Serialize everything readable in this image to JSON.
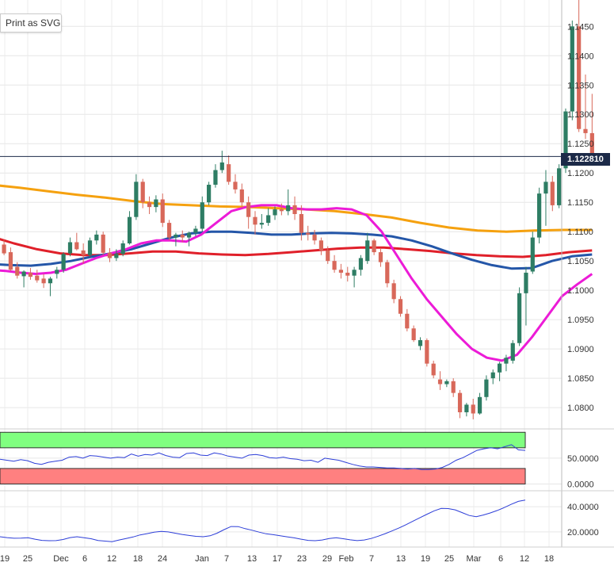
{
  "toolbar": {
    "print_label": "Print as SVG"
  },
  "current_price_label": "1.122810",
  "colors": {
    "bull": "#2e7d64",
    "bear": "#d8685a",
    "sma200": "#f5a10f",
    "sma100": "#e0202a",
    "sma50": "#2456a8",
    "sma20": "#ec1bd7",
    "rsi_overbought": "#80ff80",
    "rsi_oversold": "#ff8080",
    "osc_line": "#2d3ed8",
    "price_line": "#1c2a48"
  },
  "chart_data": [
    {
      "type": "candlestick",
      "instrument_view": "daily",
      "x_tick_labels": [
        "19",
        "25",
        "Dec",
        "6",
        "12",
        "18",
        "24",
        "Jan",
        "7",
        "13",
        "17",
        "23",
        "29",
        "Feb",
        "7",
        "13",
        "19",
        "25",
        "Mar",
        "6",
        "12",
        "18"
      ],
      "y_ticks": [
        "1.0800",
        "1.0850",
        "1.0900",
        "1.0950",
        "1.1000",
        "1.1050",
        "1.1100",
        "1.1150",
        "1.1200",
        "1.1250",
        "1.1300",
        "1.1350",
        "1.1400",
        "1.1450"
      ],
      "ylim": [
        1.0765,
        1.1495
      ],
      "current_price": 1.12281,
      "candles": [
        [
          1.1088,
          1.1093,
          1.1081,
          1.1085
        ],
        [
          1.1086,
          1.109,
          1.1073,
          1.1076
        ],
        [
          1.1078,
          1.1086,
          1.106,
          1.1063
        ],
        [
          1.1065,
          1.1073,
          1.1033,
          1.1035
        ],
        [
          1.104,
          1.1048,
          1.102,
          1.1025
        ],
        [
          1.1024,
          1.1034,
          1.1005,
          1.1032
        ],
        [
          1.103,
          1.1038,
          1.1018,
          1.1023
        ],
        [
          1.1025,
          1.1035,
          1.1013,
          1.1017
        ],
        [
          1.102,
          1.1028,
          1.1004,
          1.1012
        ],
        [
          1.1012,
          1.1023,
          1.099,
          1.102
        ],
        [
          1.1028,
          1.104,
          1.102,
          1.1035
        ],
        [
          1.1035,
          1.1065,
          1.103,
          1.1062
        ],
        [
          1.1063,
          1.109,
          1.1058,
          1.1082
        ],
        [
          1.1082,
          1.1098,
          1.1068,
          1.107
        ],
        [
          1.1068,
          1.108,
          1.1045,
          1.106
        ],
        [
          1.106,
          1.109,
          1.1055,
          1.1085
        ],
        [
          1.1085,
          1.1102,
          1.1078,
          1.1095
        ],
        [
          1.1095,
          1.11,
          1.106,
          1.1064
        ],
        [
          1.1064,
          1.1072,
          1.1048,
          1.1055
        ],
        [
          1.1055,
          1.107,
          1.105,
          1.1062
        ],
        [
          1.1062,
          1.1085,
          1.1058,
          1.108
        ],
        [
          1.108,
          1.1135,
          1.1078,
          1.1125
        ],
        [
          1.1125,
          1.1198,
          1.112,
          1.1185
        ],
        [
          1.1185,
          1.119,
          1.114,
          1.115
        ],
        [
          1.115,
          1.116,
          1.113,
          1.1142
        ],
        [
          1.1142,
          1.1162,
          1.1133,
          1.1155
        ],
        [
          1.1155,
          1.1165,
          1.1108,
          1.1115
        ],
        [
          1.1115,
          1.112,
          1.1085,
          1.109
        ],
        [
          1.109,
          1.1098,
          1.1075,
          1.1095
        ],
        [
          1.1095,
          1.1102,
          1.1082,
          1.109
        ],
        [
          1.109,
          1.11,
          1.1075,
          1.1098
        ],
        [
          1.1098,
          1.111,
          1.1092,
          1.1105
        ],
        [
          1.1105,
          1.116,
          1.11,
          1.115
        ],
        [
          1.115,
          1.1185,
          1.1145,
          1.118
        ],
        [
          1.118,
          1.1215,
          1.1175,
          1.1205
        ],
        [
          1.1205,
          1.1238,
          1.12,
          1.1218
        ],
        [
          1.1215,
          1.123,
          1.118,
          1.1185
        ],
        [
          1.1185,
          1.1198,
          1.1165,
          1.1172
        ],
        [
          1.1172,
          1.1182,
          1.114,
          1.115
        ],
        [
          1.115,
          1.116,
          1.1105,
          1.1125
        ],
        [
          1.1125,
          1.1135,
          1.1095,
          1.1112
        ],
        [
          1.1112,
          1.113,
          1.1105,
          1.1115
        ],
        [
          1.1115,
          1.114,
          1.111,
          1.1128
        ],
        [
          1.1128,
          1.1143,
          1.112,
          1.1138
        ],
        [
          1.1138,
          1.1148,
          1.1128,
          1.1135
        ],
        [
          1.1135,
          1.1172,
          1.1128,
          1.1145
        ],
        [
          1.1145,
          1.116,
          1.112,
          1.113
        ],
        [
          1.113,
          1.1145,
          1.1085,
          1.1098
        ],
        [
          1.1098,
          1.111,
          1.1085,
          1.1095
        ],
        [
          1.1095,
          1.1103,
          1.1078,
          1.1085
        ],
        [
          1.1085,
          1.109,
          1.106,
          1.1068
        ],
        [
          1.1068,
          1.1075,
          1.1045,
          1.105
        ],
        [
          1.105,
          1.106,
          1.103,
          1.1035
        ],
        [
          1.1035,
          1.1045,
          1.102,
          1.103
        ],
        [
          1.103,
          1.104,
          1.1015,
          1.1025
        ],
        [
          1.1025,
          1.104,
          1.1005,
          1.1035
        ],
        [
          1.1035,
          1.106,
          1.1025,
          1.1055
        ],
        [
          1.105,
          1.1098,
          1.1045,
          1.1085
        ],
        [
          1.1085,
          1.1088,
          1.106,
          1.1065
        ],
        [
          1.1065,
          1.1072,
          1.104,
          1.1048
        ],
        [
          1.1048,
          1.1052,
          1.1005,
          1.1012
        ],
        [
          1.1012,
          1.1018,
          1.0978,
          1.0985
        ],
        [
          1.0985,
          1.099,
          1.0955,
          1.096
        ],
        [
          1.096,
          1.0968,
          1.093,
          1.0935
        ],
        [
          1.0935,
          1.094,
          1.0912,
          1.0915
        ],
        [
          1.0905,
          1.092,
          1.0898,
          1.0915
        ],
        [
          1.0915,
          1.0918,
          1.087,
          1.0875
        ],
        [
          1.0875,
          1.088,
          1.085,
          1.0855
        ],
        [
          1.0848,
          1.0862,
          1.083,
          1.084
        ],
        [
          1.084,
          1.0848,
          1.0835,
          1.0845
        ],
        [
          1.0845,
          1.085,
          1.0818,
          1.0825
        ],
        [
          1.0825,
          1.083,
          1.0782,
          1.0792
        ],
        [
          1.0792,
          1.0808,
          1.0785,
          1.0805
        ],
        [
          1.0805,
          1.0815,
          1.078,
          1.079
        ],
        [
          1.079,
          1.0825,
          1.0788,
          1.0818
        ],
        [
          1.0818,
          1.0855,
          1.0812,
          1.0848
        ],
        [
          1.085,
          1.0865,
          1.084,
          1.086
        ],
        [
          1.086,
          1.0878,
          1.0845,
          1.0875
        ],
        [
          1.0875,
          1.089,
          1.0862,
          1.0885
        ],
        [
          1.088,
          1.0915,
          1.0875,
          1.091
        ],
        [
          1.091,
          1.1005,
          1.0905,
          1.0995
        ],
        [
          1.0995,
          1.104,
          1.094,
          1.103
        ],
        [
          1.1032,
          1.11,
          1.1028,
          1.109
        ],
        [
          1.109,
          1.1175,
          1.108,
          1.1165
        ],
        [
          1.1165,
          1.1205,
          1.111,
          1.1185
        ],
        [
          1.1185,
          1.1195,
          1.1135,
          1.1145
        ],
        [
          1.1145,
          1.1215,
          1.114,
          1.1208
        ],
        [
          1.1208,
          1.131,
          1.12,
          1.1305
        ],
        [
          1.1305,
          1.146,
          1.129,
          1.145
        ],
        [
          1.145,
          1.1495,
          1.127,
          1.1275
        ],
        [
          1.1275,
          1.1368,
          1.1258,
          1.1268
        ],
        [
          1.1268,
          1.1335,
          1.1215,
          1.1228
        ]
      ],
      "sma20": [
        1.1035,
        1.1033,
        1.103,
        1.1028,
        1.103,
        1.1035,
        1.1045,
        1.1055,
        1.1063,
        1.107,
        1.108,
        1.1085,
        1.1085,
        1.1083,
        1.1095,
        1.1115,
        1.1135,
        1.1142,
        1.1145,
        1.1145,
        1.114,
        1.1138,
        1.1138,
        1.114,
        1.1138,
        1.1128,
        1.11,
        1.106,
        1.102,
        1.0985,
        1.0955,
        1.0925,
        1.09,
        1.0885,
        1.088,
        1.089,
        1.092,
        1.0955,
        1.099,
        1.101,
        1.1028
      ],
      "sma50": [
        1.1045,
        1.1043,
        1.1042,
        1.1045,
        1.105,
        1.1057,
        1.1063,
        1.107,
        1.108,
        1.109,
        1.1097,
        1.11,
        1.11,
        1.1098,
        1.1095,
        1.1095,
        1.1097,
        1.1098,
        1.1097,
        1.1095,
        1.1092,
        1.1085,
        1.1075,
        1.1063,
        1.1052,
        1.1043,
        1.1037,
        1.1038,
        1.105,
        1.1058,
        1.1061
      ],
      "sma100": [
        1.1092,
        1.108,
        1.107,
        1.1063,
        1.106,
        1.106,
        1.1063,
        1.1066,
        1.1066,
        1.1063,
        1.1061,
        1.106,
        1.1062,
        1.1065,
        1.1068,
        1.1071,
        1.1073,
        1.1073,
        1.107,
        1.1067,
        1.1063,
        1.106,
        1.1058,
        1.1057,
        1.106,
        1.1065,
        1.1068
      ],
      "sma200": [
        1.118,
        1.1175,
        1.1169,
        1.1163,
        1.1158,
        1.1152,
        1.1147,
        1.1145,
        1.1143,
        1.1142,
        1.114,
        1.1138,
        1.1135,
        1.113,
        1.1124,
        1.1115,
        1.1107,
        1.1102,
        1.11,
        1.1102,
        1.1103,
        1.1103
      ]
    },
    {
      "type": "line",
      "indicator": "rsi",
      "y_ticks": [
        "50.0000",
        "0.0000"
      ],
      "ylim": [
        -10,
        105
      ],
      "zones": [
        {
          "from": 70,
          "to": 100,
          "color": "#80ff80"
        },
        {
          "from": 0,
          "to": 30,
          "color": "#ff8080"
        }
      ],
      "values": [
        48,
        46,
        44,
        47,
        45,
        40,
        38,
        42,
        44,
        46,
        52,
        53,
        50,
        55,
        54,
        52,
        50,
        52,
        51,
        58,
        54,
        57,
        56,
        60,
        55,
        52,
        51,
        59,
        60,
        56,
        55,
        60,
        58,
        54,
        52,
        50,
        56,
        57,
        55,
        51,
        50,
        52,
        49,
        48,
        45,
        46,
        42,
        50,
        48,
        46,
        42,
        38,
        35,
        33,
        33,
        32,
        31,
        31,
        30,
        29,
        30,
        28,
        28,
        29,
        32,
        38,
        46,
        51,
        58,
        65,
        68,
        70,
        68,
        72,
        76,
        66,
        65
      ]
    },
    {
      "type": "line",
      "indicator": "adx",
      "y_ticks": [
        "40.0000",
        "20.0000"
      ],
      "ylim": [
        8,
        52
      ],
      "values": [
        16.2,
        15.5,
        15.0,
        15.1,
        15.4,
        14.2,
        13.3,
        13.0,
        13.1,
        14.0,
        15.5,
        16.2,
        15.4,
        14.6,
        13.2,
        12.7,
        12.3,
        13.6,
        14.8,
        16.0,
        17.6,
        18.6,
        19.8,
        20.4,
        20.0,
        19.0,
        18.0,
        17.2,
        16.5,
        16.2,
        16.9,
        19.0,
        21.8,
        24.3,
        24.2,
        22.6,
        21.3,
        19.8,
        18.5,
        17.8,
        17.0,
        16.1,
        15.3,
        14.2,
        13.3,
        13.0,
        13.6,
        14.8,
        15.4,
        14.6,
        13.7,
        13.1,
        13.6,
        14.8,
        16.6,
        18.6,
        20.8,
        23.2,
        25.8,
        28.6,
        31.4,
        34.1,
        36.7,
        38.6,
        38.5,
        37.5,
        35.3,
        33.0,
        32.1,
        33.4,
        35.0,
        37.0,
        39.3,
        41.9,
        44.2,
        45.2
      ]
    }
  ]
}
